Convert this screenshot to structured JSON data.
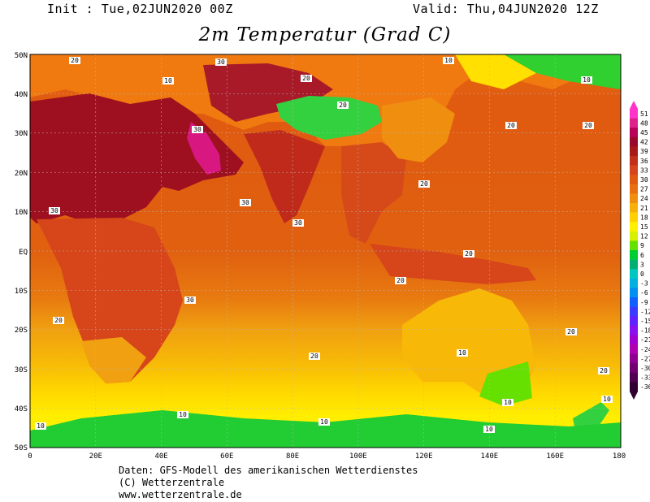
{
  "header": {
    "init": "Init : Tue,02JUN2020 00Z",
    "valid": "Valid: Thu,04JUN2020 12Z",
    "title": "2m Temperatur (Grad C)"
  },
  "lat_labels": [
    "50N",
    "40N",
    "30N",
    "20N",
    "10N",
    "EQ",
    "10S",
    "20S",
    "30S",
    "40S",
    "50S"
  ],
  "lon_labels": [
    "0",
    "20E",
    "40E",
    "60E",
    "80E",
    "100E",
    "120E",
    "140E",
    "160E",
    "180"
  ],
  "colorbar": {
    "labels": [
      "51",
      "48",
      "45",
      "42",
      "39",
      "36",
      "33",
      "30",
      "27",
      "24",
      "21",
      "18",
      "15",
      "12",
      "9",
      "6",
      "3",
      "0",
      "-3",
      "-6",
      "-9",
      "-12",
      "-15",
      "-18",
      "-21",
      "-24",
      "-27",
      "-30",
      "-33",
      "-36"
    ],
    "colors": [
      "#ff33cc",
      "#e0208a",
      "#b8005a",
      "#990a2a",
      "#a81a1a",
      "#c0301a",
      "#d6461a",
      "#e05a10",
      "#e87010",
      "#f08e10",
      "#f7b008",
      "#ffd000",
      "#fff000",
      "#d8f000",
      "#66e000",
      "#00cc33",
      "#00b070",
      "#00c8c0",
      "#00b0e0",
      "#0090f0",
      "#1060ff",
      "#3a3aff",
      "#6020ff",
      "#8a10f0",
      "#a000d0",
      "#b000b0",
      "#900090",
      "#700070",
      "#500050",
      "#300030"
    ]
  },
  "contour_labels": [
    "10",
    "20",
    "30"
  ],
  "credits": {
    "line1": "Daten: GFS-Modell des amerikanischen Wetterdienstes",
    "line2": "(C) Wetterzentrale",
    "line3": "www.wetterzentrale.de"
  }
}
